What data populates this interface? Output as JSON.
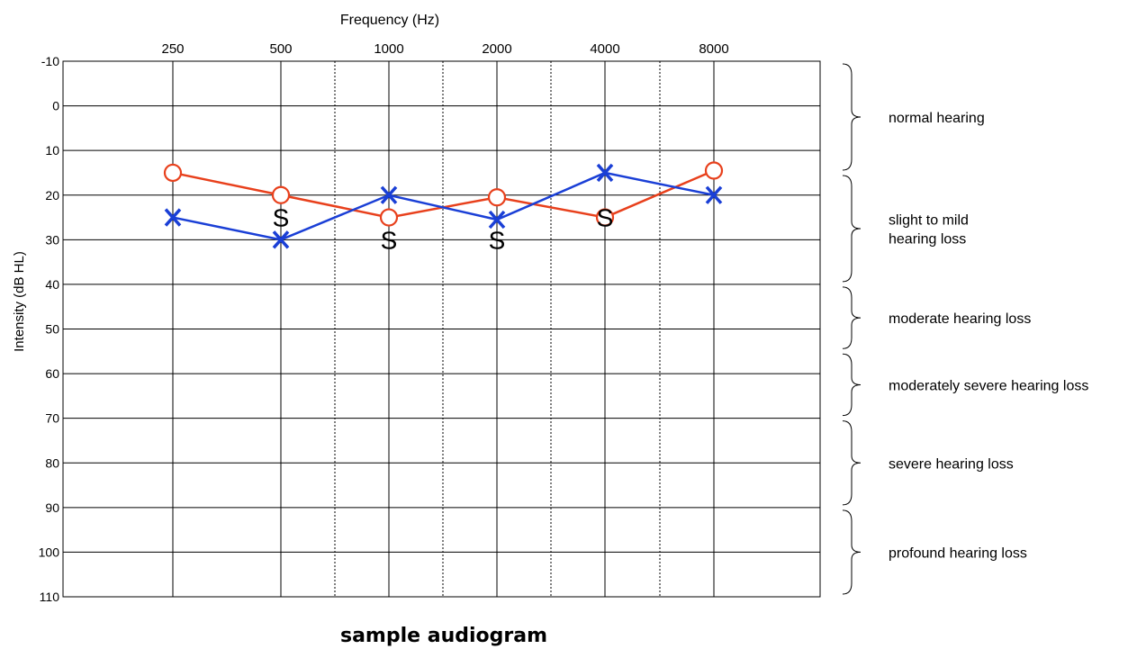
{
  "chart_data": {
    "type": "line",
    "title": "sample audiogram",
    "xlabel": "Frequency (Hz)",
    "ylabel": "Intensity (dB HL)",
    "x_ticks": [
      "250",
      "500",
      "1000",
      "2000",
      "4000",
      "8000"
    ],
    "y_ticks": [
      "-10",
      "0",
      "10",
      "20",
      "30",
      "40",
      "50",
      "60",
      "70",
      "80",
      "90",
      "100",
      "110"
    ],
    "ylim": [
      -10,
      110
    ],
    "y_inverted": true,
    "grid": true,
    "series": [
      {
        "marker": "O",
        "color": "#e8401c",
        "x": [
          "250",
          "500",
          "1000",
          "2000",
          "4000",
          "8000"
        ],
        "values": [
          15,
          20,
          25,
          20.5,
          25,
          14.5
        ]
      },
      {
        "marker": "X",
        "color": "#1a3fd6",
        "x": [
          "250",
          "500",
          "1000",
          "2000",
          "4000",
          "8000"
        ],
        "values": [
          25,
          30,
          20,
          25.5,
          15,
          20
        ]
      },
      {
        "marker": "S",
        "color": "#000000",
        "x": [
          "500",
          "1000",
          "2000",
          "4000"
        ],
        "values": [
          25,
          30,
          30,
          25
        ]
      }
    ],
    "ranges": [
      {
        "label": "normal hearing",
        "from": -10,
        "to": 15
      },
      {
        "label": "slight to mild\nhearing loss",
        "from": 15,
        "to": 40
      },
      {
        "label": "moderate hearing loss",
        "from": 40,
        "to": 55
      },
      {
        "label": "moderately severe hearing loss",
        "from": 55,
        "to": 70
      },
      {
        "label": "severe hearing loss",
        "from": 70,
        "to": 90
      },
      {
        "label": "profound hearing loss",
        "from": 90,
        "to": 110
      }
    ]
  }
}
